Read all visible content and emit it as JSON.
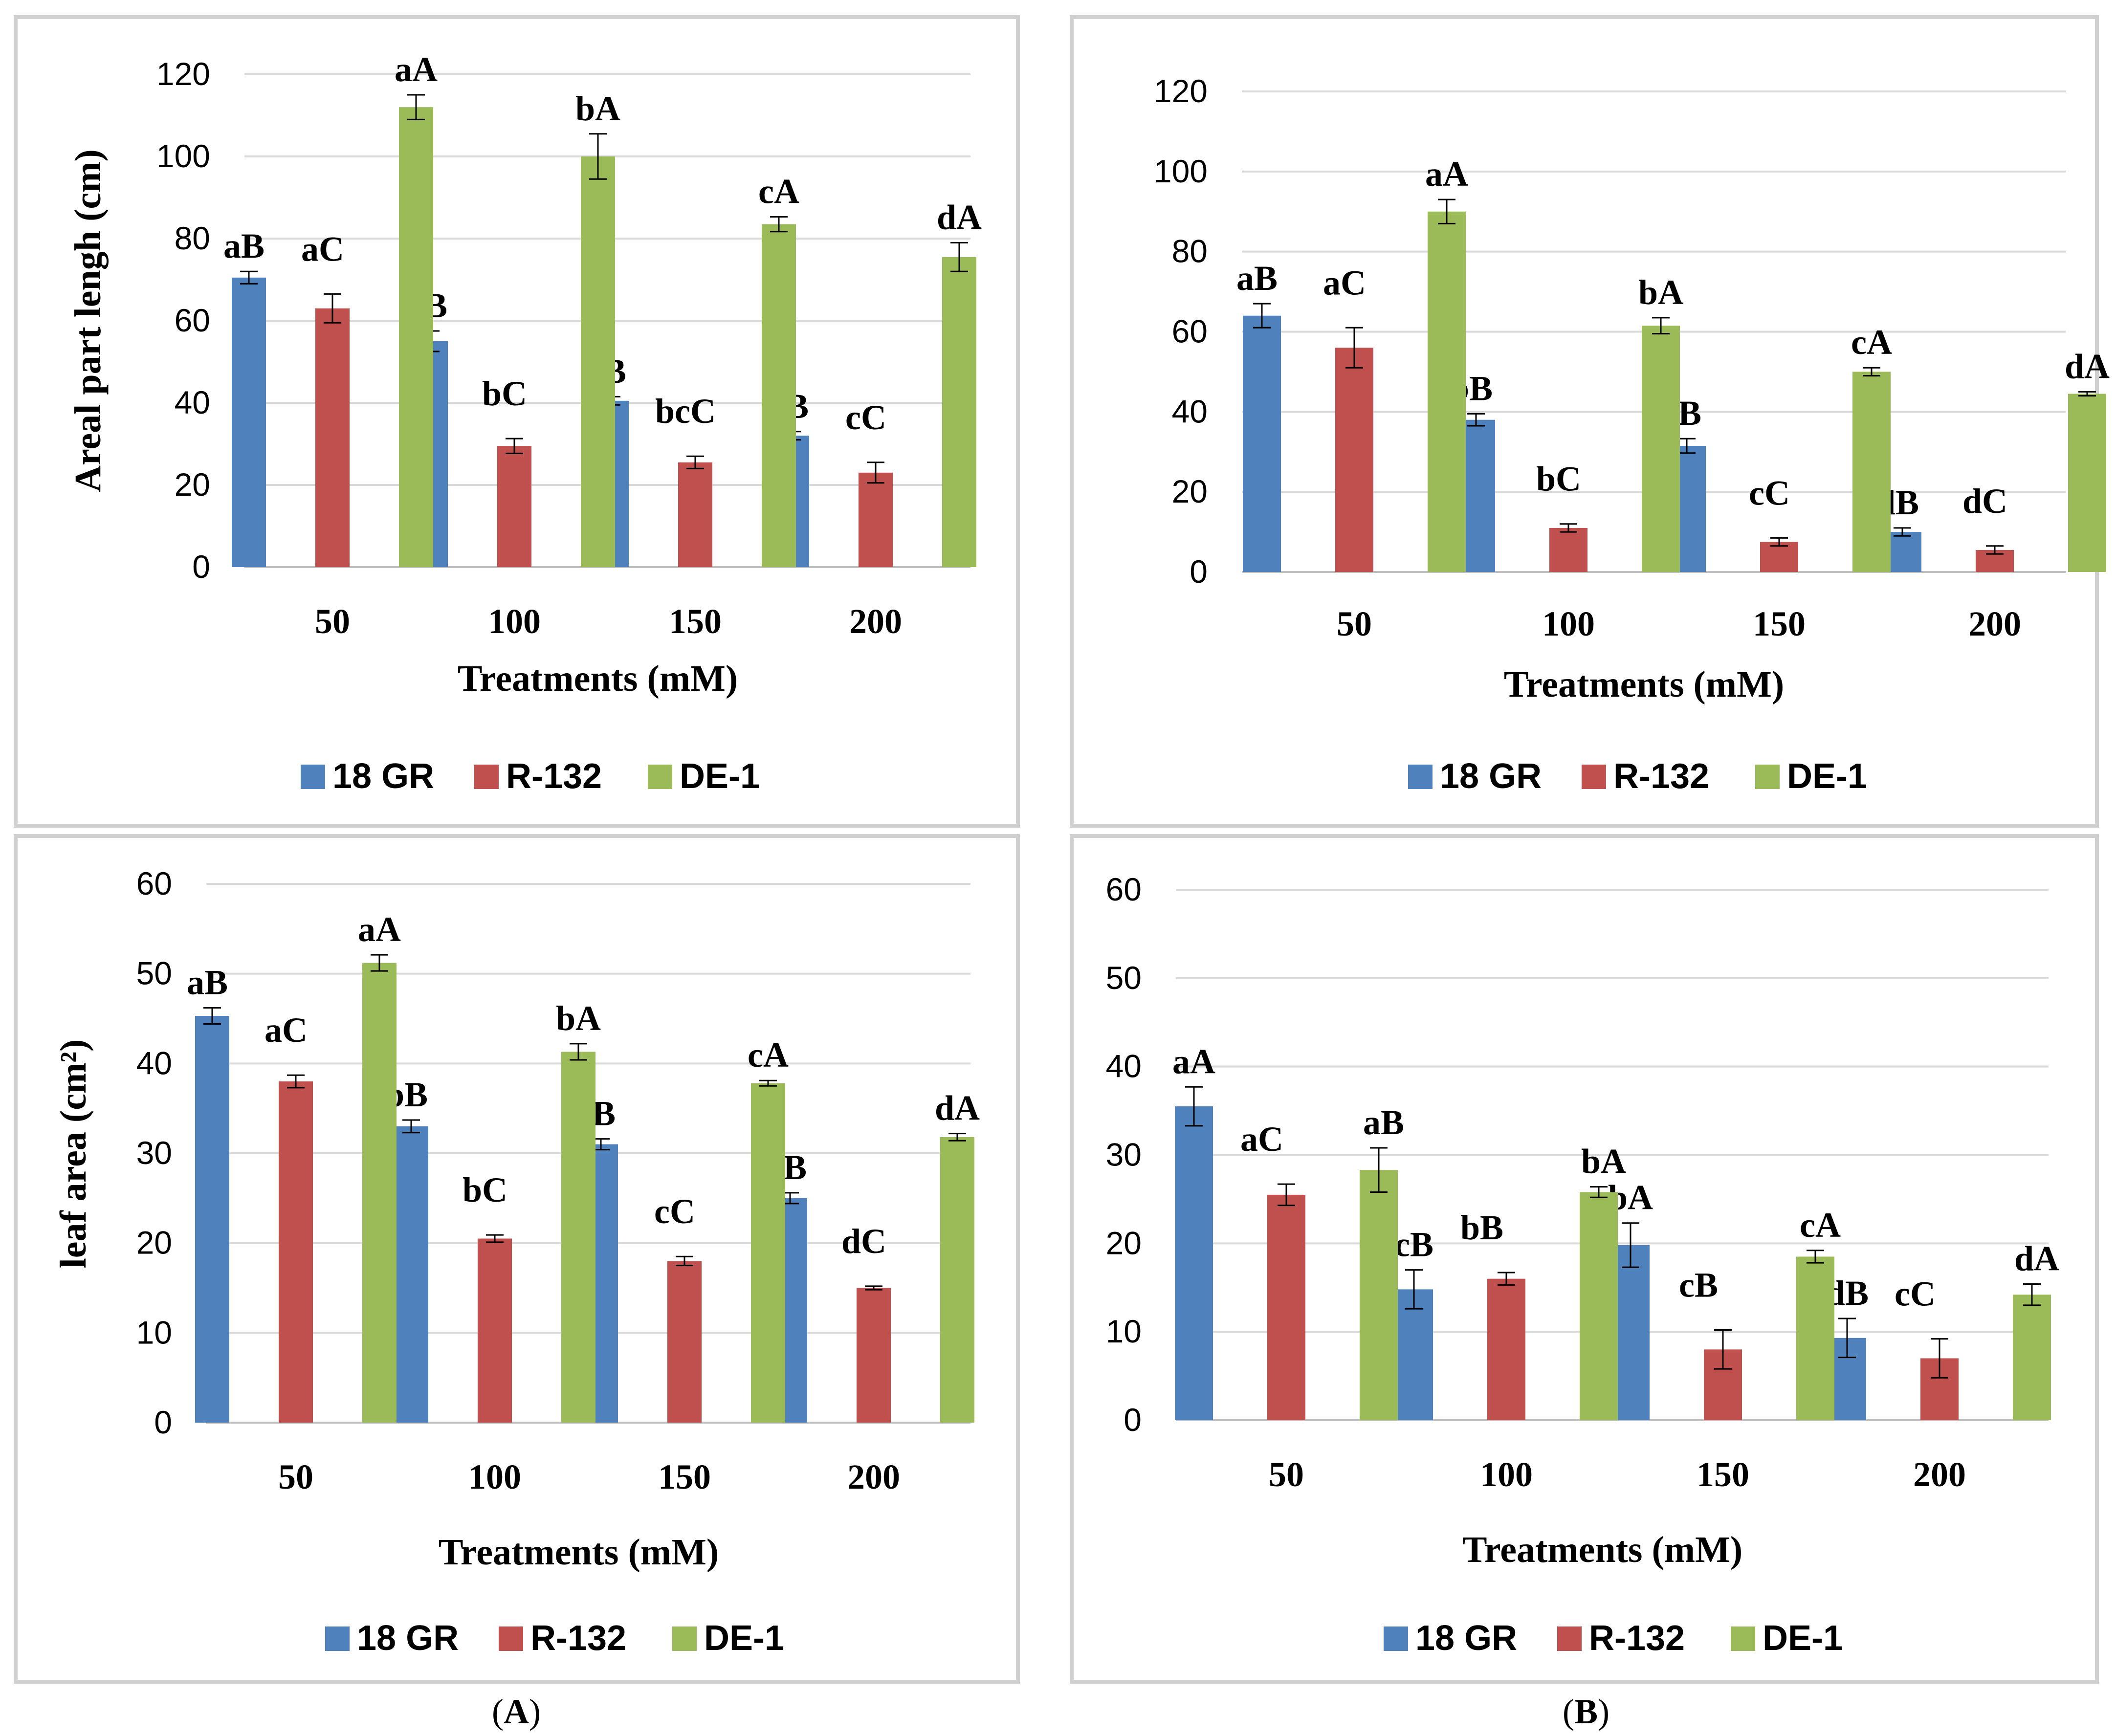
{
  "colors": {
    "18 GR": "#4f81bd",
    "R-132": "#c0504d",
    "DE-1": "#9bbb59",
    "grid": "#d9d9d9",
    "frame": "#d0d0d0"
  },
  "panel_labels": {
    "left_open": "(",
    "left_letter": "A",
    "left_close": ")",
    "right_open": "(",
    "right_letter": "B",
    "right_close": ")"
  },
  "chart_data": [
    {
      "type": "bar",
      "title": "",
      "xlabel": "Treatments (mM)",
      "ylabel": "Areal part lengh (cm)",
      "ylim": [
        0,
        120
      ],
      "ticks": [
        "0",
        "20",
        "40",
        "60",
        "80",
        "100",
        "120"
      ],
      "categories": [
        "50",
        "100",
        "150",
        "200"
      ],
      "legend_position": "bottom",
      "series": [
        {
          "name": "18 GR",
          "values": [
            70.5,
            55,
            40.5,
            32
          ],
          "errors": [
            1.5,
            2.5,
            1,
            1
          ],
          "labels": [
            "aB",
            "bB",
            "cB",
            "dB"
          ]
        },
        {
          "name": "R-132",
          "values": [
            63,
            29.5,
            25.5,
            23
          ],
          "errors": [
            3.5,
            1.8,
            1.5,
            2.5
          ],
          "labels": [
            "aC",
            "bC",
            "bcC",
            "cC"
          ]
        },
        {
          "name": "DE-1",
          "values": [
            112,
            100,
            83.5,
            75.5
          ],
          "errors": [
            3,
            5.5,
            1.8,
            3.5
          ],
          "labels": [
            "aA",
            "bA",
            "cA",
            "dA"
          ]
        }
      ]
    },
    {
      "type": "bar",
      "title": "",
      "xlabel": "Treatments (mM)",
      "ylabel": "",
      "ylim": [
        0,
        120
      ],
      "ticks": [
        "0",
        "20",
        "40",
        "60",
        "80",
        "100",
        "120"
      ],
      "categories": [
        "50",
        "100",
        "150",
        "200"
      ],
      "legend_position": "bottom",
      "series": [
        {
          "name": "18 GR",
          "values": [
            64,
            38,
            31.5,
            10
          ],
          "errors": [
            3,
            1.5,
            1.8,
            1
          ],
          "labels": [
            "aB",
            "bB",
            "cB",
            "dB"
          ]
        },
        {
          "name": "R-132",
          "values": [
            56,
            11,
            7.5,
            5.5
          ],
          "errors": [
            5,
            1,
            1,
            1
          ],
          "labels": [
            "aC",
            "bC",
            "cC",
            "dC"
          ]
        },
        {
          "name": "DE-1",
          "values": [
            90,
            61.5,
            50,
            44.5
          ],
          "errors": [
            3,
            2,
            1,
            0.5
          ],
          "labels": [
            "aA",
            "bA",
            "cA",
            "dA"
          ]
        }
      ]
    },
    {
      "type": "bar",
      "title": "",
      "xlabel": "Treatments  (mM)",
      "ylabel": "leaf area (cm²)",
      "ylim": [
        0,
        60
      ],
      "ticks": [
        "0",
        "10",
        "20",
        "30",
        "40",
        "50",
        "60"
      ],
      "categories": [
        "50",
        "100",
        "150",
        "200"
      ],
      "legend_position": "bottom",
      "series": [
        {
          "name": "18 GR",
          "values": [
            45.3,
            33,
            31,
            25
          ],
          "errors": [
            0.9,
            0.7,
            0.6,
            0.6
          ],
          "labels": [
            "aB",
            "bB",
            "cB",
            "dB"
          ]
        },
        {
          "name": "R-132",
          "values": [
            38,
            20.5,
            18,
            15
          ],
          "errors": [
            0.7,
            0.4,
            0.5,
            0.2
          ],
          "labels": [
            "aC",
            "bC",
            "cC",
            "dC"
          ]
        },
        {
          "name": "DE-1",
          "values": [
            51.2,
            41.3,
            37.8,
            31.8
          ],
          "errors": [
            0.9,
            0.9,
            0.3,
            0.4
          ],
          "labels": [
            "aA",
            "bA",
            "cA",
            "dA"
          ]
        }
      ]
    },
    {
      "type": "bar",
      "title": "",
      "xlabel": "Treatments (mM)",
      "ylabel": "",
      "ylim": [
        0,
        60
      ],
      "ticks": [
        "0",
        "10",
        "20",
        "30",
        "40",
        "50",
        "60"
      ],
      "categories": [
        "50",
        "100",
        "150",
        "200"
      ],
      "legend_position": "bottom",
      "series": [
        {
          "name": "18 GR",
          "values": [
            35.5,
            14.8,
            19.8,
            9.3
          ],
          "errors": [
            2.2,
            2.2,
            2.5,
            2.2
          ],
          "labels": [
            "aA",
            "cB",
            "bA",
            "dB"
          ]
        },
        {
          "name": "R-132",
          "values": [
            25.5,
            16,
            8,
            7
          ],
          "errors": [
            1.2,
            0.7,
            2.2,
            2.2
          ],
          "labels": [
            "aC",
            "bB",
            "cB",
            "cC"
          ]
        },
        {
          "name": "DE-1",
          "values": [
            28.3,
            25.8,
            18.5,
            14.2
          ],
          "errors": [
            2.5,
            0.6,
            0.7,
            1.2
          ],
          "labels": [
            "aB",
            "bA",
            "cA",
            "dA"
          ]
        }
      ]
    }
  ]
}
